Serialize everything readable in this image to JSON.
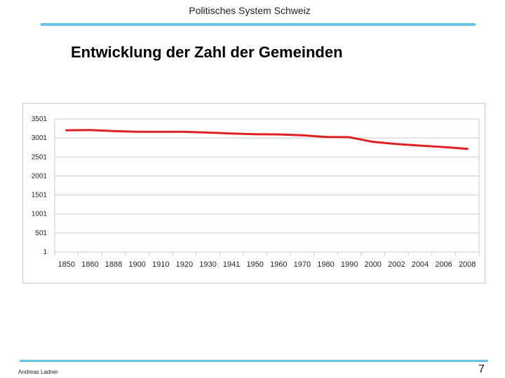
{
  "header": {
    "title": "Politisches System Schweiz"
  },
  "slide": {
    "title": "Entwicklung der Zahl der Gemeinden"
  },
  "footer": {
    "author": "Andreas Ladner",
    "page_number": "7"
  },
  "colors": {
    "accent_rule": "#6cc3ea",
    "series_line": "#e02020",
    "grid": "#c8c8c8"
  },
  "chart_data": {
    "type": "line",
    "title": "",
    "xlabel": "",
    "ylabel": "",
    "ylim": [
      1,
      3501
    ],
    "yticks": [
      "1",
      "501",
      "1001",
      "1501",
      "2001",
      "2501",
      "3001",
      "3501"
    ],
    "categories": [
      "1850",
      "1860",
      "1888",
      "1900",
      "1910",
      "1920",
      "1930",
      "1941",
      "1950",
      "1960",
      "1970",
      "1980",
      "1990",
      "2000",
      "2002",
      "2004",
      "2006",
      "2008"
    ],
    "series": [
      {
        "name": "Zahl der Gemeinden",
        "values": [
          3205,
          3211,
          3184,
          3164,
          3164,
          3164,
          3145,
          3118,
          3101,
          3095,
          3072,
          3029,
          3021,
          2899,
          2842,
          2800,
          2763,
          2715
        ]
      }
    ],
    "grid": true,
    "legend": "none"
  }
}
